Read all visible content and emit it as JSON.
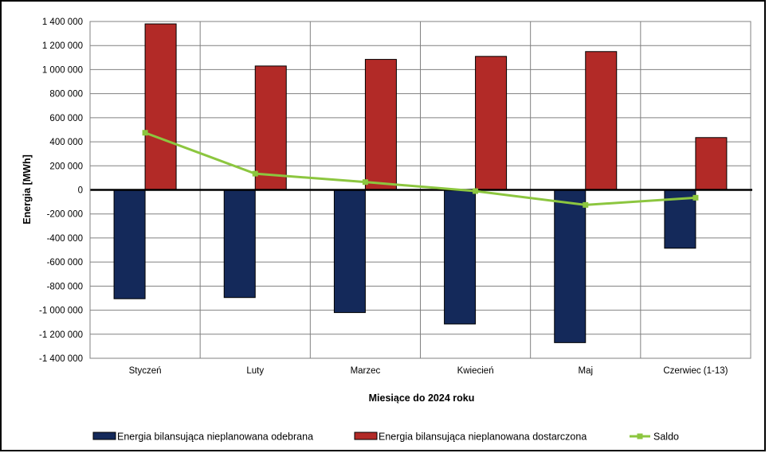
{
  "chart_data": {
    "type": "bar",
    "title": "",
    "xlabel": "Miesiące do 2024  roku",
    "ylabel": "Energia [MWh]",
    "categories": [
      "Styczeń",
      "Luty",
      "Marzec",
      "Kwiecień",
      "Maj",
      "Czerwiec (1-13)"
    ],
    "ylim": [
      -1400000,
      1400000
    ],
    "yticks": [
      1400000,
      1200000,
      1000000,
      800000,
      600000,
      400000,
      200000,
      0,
      -200000,
      -400000,
      -600000,
      -800000,
      -1000000,
      -1200000,
      -1400000
    ],
    "ytick_labels": [
      "1 400 000",
      "1 200 000",
      "1 000 000",
      "800 000",
      "600 000",
      "400 000",
      "200 000",
      "0",
      "-200 000",
      "-400 000",
      "-600 000",
      "-800 000",
      "-1 000 000",
      "-1 200 000",
      "-1 400 000"
    ],
    "grid": true,
    "legend_position": "bottom",
    "series": [
      {
        "name": "Energia bilansująca nieplanowana odebrana",
        "kind": "bar",
        "color": "#14295a",
        "values": [
          -905000,
          -895000,
          -1020000,
          -1115000,
          -1270000,
          -485000
        ]
      },
      {
        "name": "Energia bilansująca nieplanowana dostarczona",
        "kind": "bar",
        "color": "#b22a27",
        "values": [
          1380000,
          1030000,
          1085000,
          1110000,
          1150000,
          435000
        ]
      },
      {
        "name": "Saldo",
        "kind": "line",
        "color": "#8cc63f",
        "values": [
          475000,
          135000,
          65000,
          -10000,
          -125000,
          -65000
        ]
      }
    ]
  }
}
